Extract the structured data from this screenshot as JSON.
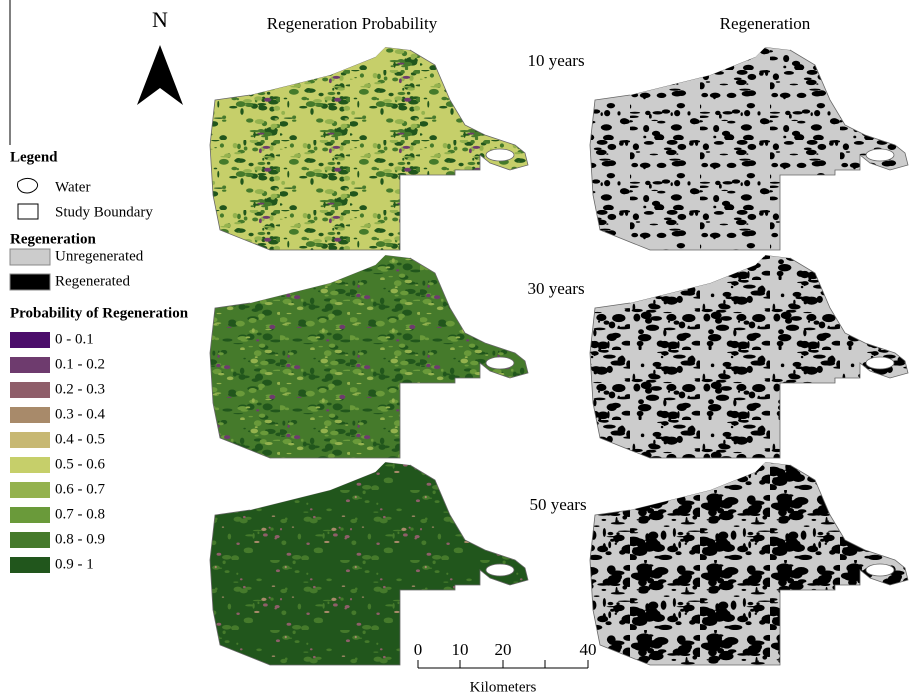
{
  "north": "N",
  "columns": [
    "Regeneration Probability",
    "Regeneration"
  ],
  "rows": [
    "10 years",
    "30 years",
    "50 years"
  ],
  "legend": {
    "title": "Legend",
    "items": [
      "Water",
      "Study Boundary"
    ],
    "regeneration": {
      "title": "Regeneration",
      "classes": [
        {
          "label": "Unregenerated",
          "color": "#cccccc"
        },
        {
          "label": "Regenerated",
          "color": "#000000"
        }
      ]
    },
    "probability": {
      "title": "Probability of Regeneration",
      "classes": [
        {
          "label": "0 - 0.1",
          "color": "#4b0d6b"
        },
        {
          "label": "0.1 - 0.2",
          "color": "#6e3b6e"
        },
        {
          "label": "0.2 - 0.3",
          "color": "#8f5e6a"
        },
        {
          "label": "0.3 - 0.4",
          "color": "#a88a6a"
        },
        {
          "label": "0.4 - 0.5",
          "color": "#c7b873"
        },
        {
          "label": "0.5 - 0.6",
          "color": "#c6cf6a"
        },
        {
          "label": "0.6 - 0.7",
          "color": "#94b24e"
        },
        {
          "label": "0.7 - 0.8",
          "color": "#6a9a3a"
        },
        {
          "label": "0.8 - 0.9",
          "color": "#457a2b"
        },
        {
          "label": "0.9 - 1",
          "color": "#21561c"
        }
      ]
    }
  },
  "scale_bar": {
    "labels": [
      "0",
      "10",
      "20",
      "40"
    ],
    "unit": "Kilometers"
  }
}
